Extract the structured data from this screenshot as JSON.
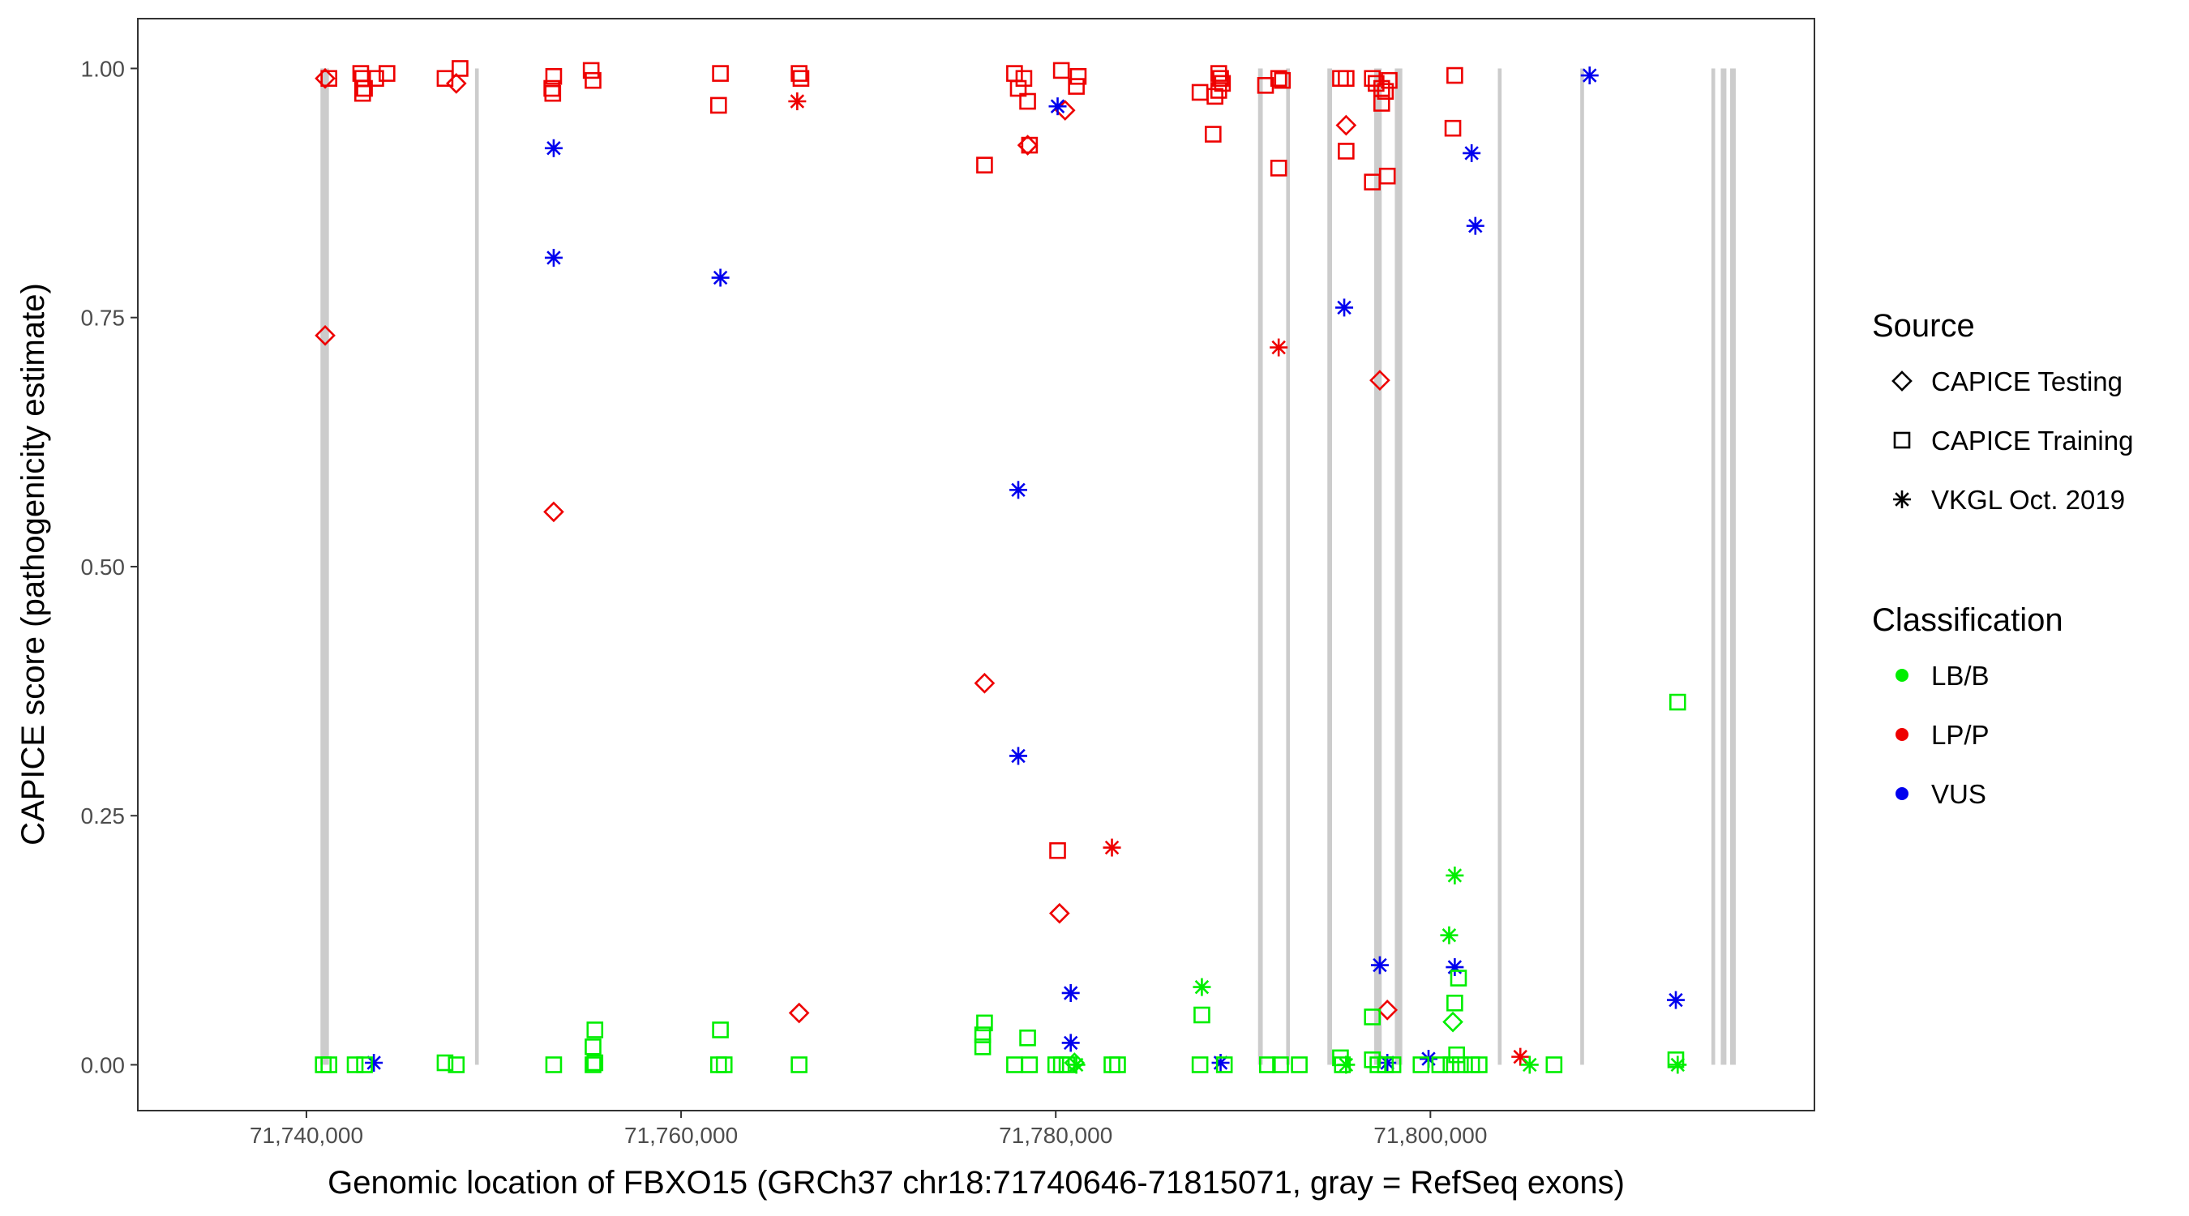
{
  "chart_data": {
    "type": "scatter",
    "title": "",
    "xlabel": "Genomic location of FBXO15 (GRCh37 chr18:71740646-71815071, gray = RefSeq exons)",
    "ylabel": "CAPICE score (pathogenicity estimate)",
    "xlim": [
      71731000,
      71820500
    ],
    "ylim": [
      -0.046,
      1.05
    ],
    "x_ticks": [
      71740000,
      71760000,
      71780000,
      71800000
    ],
    "x_tick_labels": [
      "71,740,000",
      "71,760,000",
      "71,780,000",
      "71,800,000"
    ],
    "y_ticks": [
      0,
      0.25,
      0.5,
      0.75,
      1.0
    ],
    "y_tick_labels": [
      "0.00",
      "0.25",
      "0.50",
      "0.75",
      "1.00"
    ],
    "grid": false,
    "exons": [
      [
        71740750,
        71741200
      ],
      [
        71749000,
        71749200
      ],
      [
        71790800,
        71791050
      ],
      [
        71792300,
        71792500
      ],
      [
        71794500,
        71794750
      ],
      [
        71797000,
        71797400
      ],
      [
        71798100,
        71798500
      ],
      [
        71803600,
        71803800
      ],
      [
        71808000,
        71808200
      ],
      [
        71815000,
        71815200
      ],
      [
        71815500,
        71815800
      ],
      [
        71816000,
        71816300
      ]
    ],
    "legend": {
      "placement": "right",
      "source_title": "Source",
      "source_entries": [
        {
          "label": "CAPICE Testing",
          "shape": "diamond"
        },
        {
          "label": "CAPICE Training",
          "shape": "square"
        },
        {
          "label": "VKGL Oct. 2019",
          "shape": "asterisk"
        }
      ],
      "class_title": "Classification",
      "class_entries": [
        {
          "label": "LB/B",
          "color": "#00ee00"
        },
        {
          "label": "LP/P",
          "color": "#ee0000"
        },
        {
          "label": "VUS",
          "color": "#0000ee"
        }
      ]
    },
    "colors": {
      "LB/B": "#00ee00",
      "LP/P": "#ee0000",
      "VUS": "#0000ee"
    },
    "points": [
      {
        "x": 71741000,
        "y": 0.99,
        "source": "CAPICE Testing",
        "class": "LP/P"
      },
      {
        "x": 71741200,
        "y": 0.99,
        "source": "CAPICE Training",
        "class": "LP/P"
      },
      {
        "x": 71743000,
        "y": 0.99,
        "source": "CAPICE Training",
        "class": "LP/P"
      },
      {
        "x": 71743100,
        "y": 0.98,
        "source": "CAPICE Training",
        "class": "LP/P"
      },
      {
        "x": 71743000,
        "y": 0.975,
        "source": "CAPICE Training",
        "class": "LP/P"
      },
      {
        "x": 71742900,
        "y": 0.995,
        "source": "CAPICE Training",
        "class": "LP/P"
      },
      {
        "x": 71743700,
        "y": 0.99,
        "source": "CAPICE Training",
        "class": "LP/P"
      },
      {
        "x": 71744300,
        "y": 0.995,
        "source": "CAPICE Training",
        "class": "LP/P"
      },
      {
        "x": 71747400,
        "y": 0.99,
        "source": "CAPICE Training",
        "class": "LP/P"
      },
      {
        "x": 71748200,
        "y": 1.0,
        "source": "CAPICE Training",
        "class": "LP/P"
      },
      {
        "x": 71748000,
        "y": 0.985,
        "source": "CAPICE Testing",
        "class": "LP/P"
      },
      {
        "x": 71741000,
        "y": 0.732,
        "source": "CAPICE Testing",
        "class": "LP/P"
      },
      {
        "x": 71753200,
        "y": 0.992,
        "source": "CAPICE Training",
        "class": "LP/P"
      },
      {
        "x": 71753100,
        "y": 0.98,
        "source": "CAPICE Training",
        "class": "LP/P"
      },
      {
        "x": 71753150,
        "y": 0.975,
        "source": "CAPICE Training",
        "class": "LP/P"
      },
      {
        "x": 71755200,
        "y": 0.998,
        "source": "CAPICE Training",
        "class": "LP/P"
      },
      {
        "x": 71755300,
        "y": 0.988,
        "source": "CAPICE Training",
        "class": "LP/P"
      },
      {
        "x": 71753200,
        "y": 0.555,
        "source": "CAPICE Testing",
        "class": "LP/P"
      },
      {
        "x": 71762100,
        "y": 0.995,
        "source": "CAPICE Training",
        "class": "LP/P"
      },
      {
        "x": 71762000,
        "y": 0.963,
        "source": "CAPICE Training",
        "class": "LP/P"
      },
      {
        "x": 71766300,
        "y": 0.995,
        "source": "CAPICE Training",
        "class": "LP/P"
      },
      {
        "x": 71766400,
        "y": 0.99,
        "source": "CAPICE Training",
        "class": "LP/P"
      },
      {
        "x": 71766200,
        "y": 0.967,
        "source": "VKGL Oct. 2019",
        "class": "LP/P"
      },
      {
        "x": 71766300,
        "y": 0.052,
        "source": "CAPICE Testing",
        "class": "LP/P"
      },
      {
        "x": 71776200,
        "y": 0.903,
        "source": "CAPICE Training",
        "class": "LP/P"
      },
      {
        "x": 71777800,
        "y": 0.995,
        "source": "CAPICE Training",
        "class": "LP/P"
      },
      {
        "x": 71778300,
        "y": 0.99,
        "source": "CAPICE Training",
        "class": "LP/P"
      },
      {
        "x": 71778000,
        "y": 0.98,
        "source": "CAPICE Training",
        "class": "LP/P"
      },
      {
        "x": 71778500,
        "y": 0.967,
        "source": "CAPICE Training",
        "class": "LP/P"
      },
      {
        "x": 71778500,
        "y": 0.923,
        "source": "CAPICE Testing",
        "class": "LP/P"
      },
      {
        "x": 71778600,
        "y": 0.923,
        "source": "CAPICE Training",
        "class": "LP/P"
      },
      {
        "x": 71780300,
        "y": 0.998,
        "source": "CAPICE Training",
        "class": "LP/P"
      },
      {
        "x": 71780500,
        "y": 0.958,
        "source": "CAPICE Testing",
        "class": "LP/P"
      },
      {
        "x": 71781200,
        "y": 0.992,
        "source": "CAPICE Training",
        "class": "LP/P"
      },
      {
        "x": 71781100,
        "y": 0.982,
        "source": "CAPICE Training",
        "class": "LP/P"
      },
      {
        "x": 71776200,
        "y": 0.383,
        "source": "CAPICE Testing",
        "class": "LP/P"
      },
      {
        "x": 71780100,
        "y": 0.215,
        "source": "CAPICE Training",
        "class": "LP/P"
      },
      {
        "x": 71780200,
        "y": 0.152,
        "source": "CAPICE Testing",
        "class": "LP/P"
      },
      {
        "x": 71783000,
        "y": 0.218,
        "source": "VKGL Oct. 2019",
        "class": "LP/P"
      },
      {
        "x": 71787700,
        "y": 0.976,
        "source": "CAPICE Training",
        "class": "LP/P"
      },
      {
        "x": 71788700,
        "y": 0.995,
        "source": "CAPICE Training",
        "class": "LP/P"
      },
      {
        "x": 71788800,
        "y": 0.99,
        "source": "CAPICE Training",
        "class": "LP/P"
      },
      {
        "x": 71788900,
        "y": 0.985,
        "source": "CAPICE Training",
        "class": "LP/P"
      },
      {
        "x": 71788700,
        "y": 0.978,
        "source": "CAPICE Training",
        "class": "LP/P"
      },
      {
        "x": 71788500,
        "y": 0.972,
        "source": "CAPICE Training",
        "class": "LP/P"
      },
      {
        "x": 71788400,
        "y": 0.934,
        "source": "CAPICE Training",
        "class": "LP/P"
      },
      {
        "x": 71791200,
        "y": 0.983,
        "source": "CAPICE Training",
        "class": "LP/P"
      },
      {
        "x": 71791900,
        "y": 0.99,
        "source": "CAPICE Training",
        "class": "LP/P"
      },
      {
        "x": 71792100,
        "y": 0.988,
        "source": "CAPICE Training",
        "class": "LP/P"
      },
      {
        "x": 71791900,
        "y": 0.9,
        "source": "CAPICE Training",
        "class": "LP/P"
      },
      {
        "x": 71791900,
        "y": 0.72,
        "source": "VKGL Oct. 2019",
        "class": "LP/P"
      },
      {
        "x": 71795200,
        "y": 0.99,
        "source": "CAPICE Training",
        "class": "LP/P"
      },
      {
        "x": 71795500,
        "y": 0.99,
        "source": "CAPICE Training",
        "class": "LP/P"
      },
      {
        "x": 71795500,
        "y": 0.943,
        "source": "CAPICE Testing",
        "class": "LP/P"
      },
      {
        "x": 71795500,
        "y": 0.917,
        "source": "CAPICE Training",
        "class": "LP/P"
      },
      {
        "x": 71796900,
        "y": 0.99,
        "source": "CAPICE Training",
        "class": "LP/P"
      },
      {
        "x": 71797100,
        "y": 0.985,
        "source": "CAPICE Training",
        "class": "LP/P"
      },
      {
        "x": 71797400,
        "y": 0.98,
        "source": "CAPICE Training",
        "class": "LP/P"
      },
      {
        "x": 71797800,
        "y": 0.988,
        "source": "CAPICE Training",
        "class": "LP/P"
      },
      {
        "x": 71797600,
        "y": 0.977,
        "source": "CAPICE Training",
        "class": "LP/P"
      },
      {
        "x": 71797400,
        "y": 0.965,
        "source": "CAPICE Training",
        "class": "LP/P"
      },
      {
        "x": 71796900,
        "y": 0.886,
        "source": "CAPICE Training",
        "class": "LP/P"
      },
      {
        "x": 71797700,
        "y": 0.892,
        "source": "CAPICE Training",
        "class": "LP/P"
      },
      {
        "x": 71797300,
        "y": 0.687,
        "source": "CAPICE Testing",
        "class": "LP/P"
      },
      {
        "x": 71797700,
        "y": 0.055,
        "source": "CAPICE Testing",
        "class": "LP/P"
      },
      {
        "x": 71801300,
        "y": 0.993,
        "source": "CAPICE Training",
        "class": "LP/P"
      },
      {
        "x": 71801200,
        "y": 0.94,
        "source": "CAPICE Training",
        "class": "LP/P"
      },
      {
        "x": 71804800,
        "y": 0.008,
        "source": "VKGL Oct. 2019",
        "class": "LP/P"
      },
      {
        "x": 71753200,
        "y": 0.92,
        "source": "VKGL Oct. 2019",
        "class": "VUS"
      },
      {
        "x": 71753200,
        "y": 0.81,
        "source": "VKGL Oct. 2019",
        "class": "VUS"
      },
      {
        "x": 71743600,
        "y": 0.002,
        "source": "VKGL Oct. 2019",
        "class": "VUS"
      },
      {
        "x": 71762100,
        "y": 0.79,
        "source": "VKGL Oct. 2019",
        "class": "VUS"
      },
      {
        "x": 71780100,
        "y": 0.962,
        "source": "VKGL Oct. 2019",
        "class": "VUS"
      },
      {
        "x": 71778000,
        "y": 0.577,
        "source": "VKGL Oct. 2019",
        "class": "VUS"
      },
      {
        "x": 71778000,
        "y": 0.31,
        "source": "VKGL Oct. 2019",
        "class": "VUS"
      },
      {
        "x": 71780800,
        "y": 0.072,
        "source": "VKGL Oct. 2019",
        "class": "VUS"
      },
      {
        "x": 71780800,
        "y": 0.022,
        "source": "VKGL Oct. 2019",
        "class": "VUS"
      },
      {
        "x": 71788800,
        "y": 0.002,
        "source": "VKGL Oct. 2019",
        "class": "VUS"
      },
      {
        "x": 71795400,
        "y": 0.76,
        "source": "VKGL Oct. 2019",
        "class": "VUS"
      },
      {
        "x": 71797300,
        "y": 0.1,
        "source": "VKGL Oct. 2019",
        "class": "VUS"
      },
      {
        "x": 71797700,
        "y": 0.002,
        "source": "VKGL Oct. 2019",
        "class": "VUS"
      },
      {
        "x": 71799900,
        "y": 0.006,
        "source": "VKGL Oct. 2019",
        "class": "VUS"
      },
      {
        "x": 71801300,
        "y": 0.098,
        "source": "VKGL Oct. 2019",
        "class": "VUS"
      },
      {
        "x": 71802200,
        "y": 0.915,
        "source": "VKGL Oct. 2019",
        "class": "VUS"
      },
      {
        "x": 71802400,
        "y": 0.842,
        "source": "VKGL Oct. 2019",
        "class": "VUS"
      },
      {
        "x": 71808500,
        "y": 0.993,
        "source": "VKGL Oct. 2019",
        "class": "VUS"
      },
      {
        "x": 71813100,
        "y": 0.065,
        "source": "VKGL Oct. 2019",
        "class": "VUS"
      },
      {
        "x": 71740900,
        "y": 0.0,
        "source": "CAPICE Training",
        "class": "LB/B"
      },
      {
        "x": 71741200,
        "y": 0.0,
        "source": "CAPICE Training",
        "class": "LB/B"
      },
      {
        "x": 71742600,
        "y": 0.0,
        "source": "CAPICE Training",
        "class": "LB/B"
      },
      {
        "x": 71743100,
        "y": 0.0,
        "source": "CAPICE Training",
        "class": "LB/B"
      },
      {
        "x": 71747400,
        "y": 0.002,
        "source": "CAPICE Training",
        "class": "LB/B"
      },
      {
        "x": 71748000,
        "y": 0.0,
        "source": "CAPICE Training",
        "class": "LB/B"
      },
      {
        "x": 71753200,
        "y": 0.0,
        "source": "CAPICE Training",
        "class": "LB/B"
      },
      {
        "x": 71755400,
        "y": 0.035,
        "source": "CAPICE Training",
        "class": "LB/B"
      },
      {
        "x": 71755300,
        "y": 0.018,
        "source": "CAPICE Training",
        "class": "LB/B"
      },
      {
        "x": 71755400,
        "y": 0.002,
        "source": "CAPICE Training",
        "class": "LB/B"
      },
      {
        "x": 71755300,
        "y": 0.0,
        "source": "CAPICE Training",
        "class": "LB/B"
      },
      {
        "x": 71762100,
        "y": 0.035,
        "source": "CAPICE Training",
        "class": "LB/B"
      },
      {
        "x": 71762000,
        "y": 0.0,
        "source": "CAPICE Training",
        "class": "LB/B"
      },
      {
        "x": 71762300,
        "y": 0.0,
        "source": "CAPICE Training",
        "class": "LB/B"
      },
      {
        "x": 71766300,
        "y": 0.0,
        "source": "CAPICE Training",
        "class": "LB/B"
      },
      {
        "x": 71776200,
        "y": 0.042,
        "source": "CAPICE Training",
        "class": "LB/B"
      },
      {
        "x": 71776100,
        "y": 0.03,
        "source": "CAPICE Training",
        "class": "LB/B"
      },
      {
        "x": 71776100,
        "y": 0.018,
        "source": "CAPICE Training",
        "class": "LB/B"
      },
      {
        "x": 71778500,
        "y": 0.027,
        "source": "CAPICE Training",
        "class": "LB/B"
      },
      {
        "x": 71777800,
        "y": 0.0,
        "source": "CAPICE Training",
        "class": "LB/B"
      },
      {
        "x": 71778600,
        "y": 0.0,
        "source": "CAPICE Training",
        "class": "LB/B"
      },
      {
        "x": 71780000,
        "y": 0.0,
        "source": "CAPICE Training",
        "class": "LB/B"
      },
      {
        "x": 71780300,
        "y": 0.0,
        "source": "CAPICE Training",
        "class": "LB/B"
      },
      {
        "x": 71780600,
        "y": 0.0,
        "source": "CAPICE Training",
        "class": "LB/B"
      },
      {
        "x": 71781000,
        "y": 0.002,
        "source": "CAPICE Testing",
        "class": "LB/B"
      },
      {
        "x": 71781100,
        "y": 0.0,
        "source": "VKGL Oct. 2019",
        "class": "LB/B"
      },
      {
        "x": 71783000,
        "y": 0.0,
        "source": "CAPICE Training",
        "class": "LB/B"
      },
      {
        "x": 71783300,
        "y": 0.0,
        "source": "CAPICE Training",
        "class": "LB/B"
      },
      {
        "x": 71787800,
        "y": 0.078,
        "source": "VKGL Oct. 2019",
        "class": "LB/B"
      },
      {
        "x": 71787800,
        "y": 0.05,
        "source": "CAPICE Training",
        "class": "LB/B"
      },
      {
        "x": 71787700,
        "y": 0.0,
        "source": "CAPICE Training",
        "class": "LB/B"
      },
      {
        "x": 71789000,
        "y": 0.0,
        "source": "CAPICE Training",
        "class": "LB/B"
      },
      {
        "x": 71791300,
        "y": 0.0,
        "source": "CAPICE Training",
        "class": "LB/B"
      },
      {
        "x": 71792000,
        "y": 0.0,
        "source": "CAPICE Training",
        "class": "LB/B"
      },
      {
        "x": 71793000,
        "y": 0.0,
        "source": "CAPICE Training",
        "class": "LB/B"
      },
      {
        "x": 71795200,
        "y": 0.007,
        "source": "CAPICE Training",
        "class": "LB/B"
      },
      {
        "x": 71795300,
        "y": 0.0,
        "source": "CAPICE Training",
        "class": "LB/B"
      },
      {
        "x": 71795500,
        "y": 0.0,
        "source": "VKGL Oct. 2019",
        "class": "LB/B"
      },
      {
        "x": 71796900,
        "y": 0.048,
        "source": "CAPICE Training",
        "class": "LB/B"
      },
      {
        "x": 71796900,
        "y": 0.005,
        "source": "CAPICE Training",
        "class": "LB/B"
      },
      {
        "x": 71797200,
        "y": 0.0,
        "source": "CAPICE Training",
        "class": "LB/B"
      },
      {
        "x": 71797600,
        "y": 0.0,
        "source": "CAPICE Training",
        "class": "LB/B"
      },
      {
        "x": 71798000,
        "y": 0.0,
        "source": "CAPICE Training",
        "class": "LB/B"
      },
      {
        "x": 71799500,
        "y": 0.0,
        "source": "CAPICE Training",
        "class": "LB/B"
      },
      {
        "x": 71800500,
        "y": 0.0,
        "source": "CAPICE Training",
        "class": "LB/B"
      },
      {
        "x": 71801000,
        "y": 0.13,
        "source": "VKGL Oct. 2019",
        "class": "LB/B"
      },
      {
        "x": 71801300,
        "y": 0.19,
        "source": "VKGL Oct. 2019",
        "class": "LB/B"
      },
      {
        "x": 71801500,
        "y": 0.087,
        "source": "CAPICE Training",
        "class": "LB/B"
      },
      {
        "x": 71801300,
        "y": 0.062,
        "source": "CAPICE Training",
        "class": "LB/B"
      },
      {
        "x": 71801200,
        "y": 0.043,
        "source": "CAPICE Testing",
        "class": "LB/B"
      },
      {
        "x": 71801400,
        "y": 0.01,
        "source": "CAPICE Training",
        "class": "LB/B"
      },
      {
        "x": 71801100,
        "y": 0.0,
        "source": "CAPICE Training",
        "class": "LB/B"
      },
      {
        "x": 71801600,
        "y": 0.0,
        "source": "CAPICE Training",
        "class": "LB/B"
      },
      {
        "x": 71802200,
        "y": 0.0,
        "source": "CAPICE Training",
        "class": "LB/B"
      },
      {
        "x": 71802600,
        "y": 0.0,
        "source": "CAPICE Training",
        "class": "LB/B"
      },
      {
        "x": 71805300,
        "y": 0.0,
        "source": "VKGL Oct. 2019",
        "class": "LB/B"
      },
      {
        "x": 71806600,
        "y": 0.0,
        "source": "CAPICE Training",
        "class": "LB/B"
      },
      {
        "x": 71813200,
        "y": 0.364,
        "source": "CAPICE Training",
        "class": "LB/B"
      },
      {
        "x": 71813100,
        "y": 0.005,
        "source": "CAPICE Training",
        "class": "LB/B"
      },
      {
        "x": 71813200,
        "y": 0.0,
        "source": "VKGL Oct. 2019",
        "class": "LB/B"
      }
    ]
  }
}
